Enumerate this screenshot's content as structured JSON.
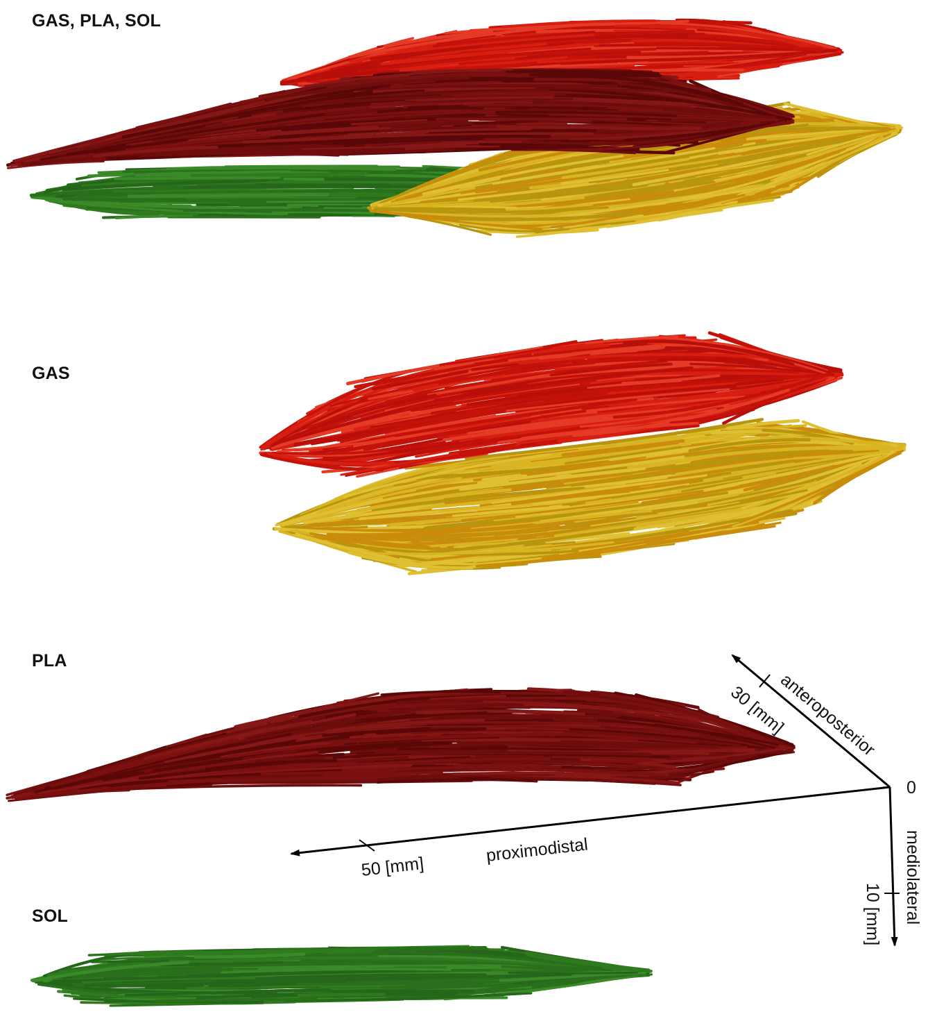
{
  "panels": [
    {
      "title": "GAS, PLA, SOL",
      "bundles": [
        "gas_upper",
        "gas_lower",
        "pla",
        "sol"
      ]
    },
    {
      "title": "GAS",
      "bundles": [
        "gas_upper",
        "gas_lower"
      ]
    },
    {
      "title": "PLA",
      "bundles": [
        "pla"
      ]
    },
    {
      "title": "SOL",
      "bundles": [
        "sol"
      ]
    }
  ],
  "colors": {
    "gas_upper": "#d81e10",
    "gas_lower_light": "#d9b423",
    "gas_lower_dark": "#c98c0b",
    "pla": "#6e0d0d",
    "sol": "#2f7a1e"
  },
  "axes": {
    "origin_label": "0",
    "anteroposterior": {
      "name": "anteroposterior",
      "tick": "30 [mm]"
    },
    "proximodistal": {
      "name": "proximodistal",
      "tick": "50 [mm]"
    },
    "mediolateral": {
      "name": "mediolateral",
      "tick": "10 [mm]"
    }
  }
}
